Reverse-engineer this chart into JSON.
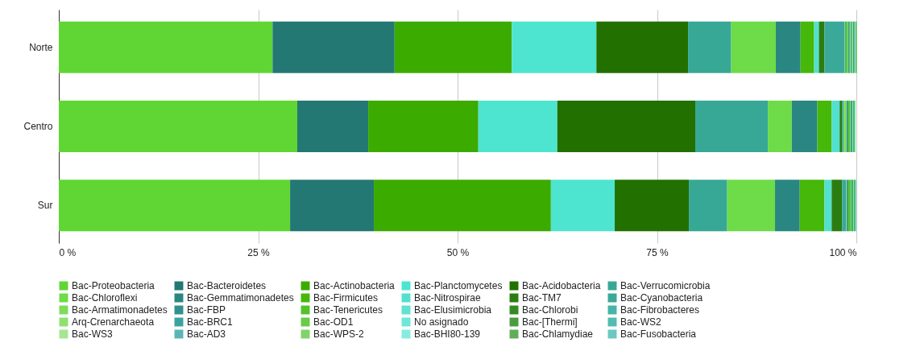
{
  "chart_data": {
    "type": "bar",
    "orientation": "horizontal",
    "stacked": true,
    "categories": [
      "Norte",
      "Centro",
      "Sur"
    ],
    "xlim": [
      0,
      100
    ],
    "xticks": [
      {
        "value": 0,
        "label": "0 %"
      },
      {
        "value": 25,
        "label": "25 %"
      },
      {
        "value": 50,
        "label": "50 %"
      },
      {
        "value": 75,
        "label": "75 %"
      },
      {
        "value": 100,
        "label": "100 %"
      }
    ],
    "grid": "x",
    "legend": "bottom",
    "series": [
      {
        "name": "Bac-Proteobacteria",
        "color": "#5fd633",
        "values": [
          26.8,
          29.9,
          29.0
        ]
      },
      {
        "name": "Bac-Bacteroidetes",
        "color": "#237873",
        "values": [
          15.3,
          8.9,
          10.5
        ]
      },
      {
        "name": "Bac-Actinobacteria",
        "color": "#3cab00",
        "values": [
          14.7,
          13.8,
          22.2
        ]
      },
      {
        "name": "Bac-Planctomycetes",
        "color": "#4de5cf",
        "values": [
          10.6,
          9.9,
          8.0
        ]
      },
      {
        "name": "Bac-Acidobacteria",
        "color": "#217000",
        "values": [
          11.5,
          17.3,
          9.3
        ]
      },
      {
        "name": "Bac-Verrucomicrobia",
        "color": "#37a895",
        "values": [
          5.4,
          9.1,
          4.8
        ]
      },
      {
        "name": "Bac-Chloroflexi",
        "color": "#6edb48",
        "values": [
          5.6,
          3.0,
          6.0
        ]
      },
      {
        "name": "Bac-Gemmatimonadetes",
        "color": "#2a8681",
        "values": [
          3.1,
          3.2,
          3.1
        ]
      },
      {
        "name": "Bac-Firmicutes",
        "color": "#45b80a",
        "values": [
          1.7,
          1.8,
          3.1
        ]
      },
      {
        "name": "Bac-Nitrospirae",
        "color": "#52e0cf",
        "values": [
          0.6,
          1.0,
          0.9
        ]
      },
      {
        "name": "Bac-TM7",
        "color": "#2b7d12",
        "values": [
          0.7,
          0.3,
          1.3
        ]
      },
      {
        "name": "Bac-Cyanobacteria",
        "color": "#3aa99a",
        "values": [
          2.5,
          0.2,
          0.5
        ]
      },
      {
        "name": "Bac-Armatimonadetes",
        "color": "#7ddc5a",
        "values": [
          0.1,
          0.4,
          0.1
        ]
      },
      {
        "name": "Bac-FBP",
        "color": "#30918c",
        "values": [
          0.1,
          0.2,
          0.2
        ]
      },
      {
        "name": "Bac-Tenericutes",
        "color": "#55c22a",
        "values": [
          0.2,
          0.2,
          0.3
        ]
      },
      {
        "name": "Bac-Elusimicrobia",
        "color": "#5ee2d2",
        "values": [
          0.1,
          0.1,
          0.1
        ]
      },
      {
        "name": "Bac-Chlorobi",
        "color": "#358a22",
        "values": [
          0.1,
          0.1,
          0.1
        ]
      },
      {
        "name": "Bac-Fibrobacteres",
        "color": "#45b5a8",
        "values": [
          0.1,
          0.1,
          0.1
        ]
      },
      {
        "name": "Arq-Crenarchaeota",
        "color": "#8fe070",
        "values": [
          0.1,
          0.1,
          0.1
        ]
      },
      {
        "name": "Bac-BRC1",
        "color": "#3aa3a0",
        "values": [
          0.1,
          0.1,
          0.1
        ]
      },
      {
        "name": "Bac-OD1",
        "color": "#6acb48",
        "values": [
          0.1,
          0.1,
          0.1
        ]
      },
      {
        "name": "No asignado",
        "color": "#6ee6d8",
        "values": [
          0.1,
          0.1,
          0.1
        ]
      },
      {
        "name": "Bac-[Thermi]",
        "color": "#4b9c3d",
        "values": [
          0.1,
          0,
          0
        ]
      },
      {
        "name": "Bac-WS2",
        "color": "#52bcb2",
        "values": [
          0.1,
          0,
          0
        ]
      },
      {
        "name": "Bac-WS3",
        "color": "#a6e592",
        "values": [
          0.1,
          0,
          0
        ]
      },
      {
        "name": "Bac-AD3",
        "color": "#5ab6b6",
        "values": [
          0.1,
          0,
          0
        ]
      },
      {
        "name": "Bac-WPS-2",
        "color": "#80d468",
        "values": [
          0.1,
          0,
          0
        ]
      },
      {
        "name": "Bac-BHI80-139",
        "color": "#88ebe0",
        "values": [
          0,
          0,
          0
        ]
      },
      {
        "name": "Bac-Chlamydiae",
        "color": "#62ad5a",
        "values": [
          0,
          0,
          0
        ]
      },
      {
        "name": "Bac-Fusobacteria",
        "color": "#6cc9c2",
        "values": [
          0,
          0,
          0
        ]
      }
    ]
  }
}
